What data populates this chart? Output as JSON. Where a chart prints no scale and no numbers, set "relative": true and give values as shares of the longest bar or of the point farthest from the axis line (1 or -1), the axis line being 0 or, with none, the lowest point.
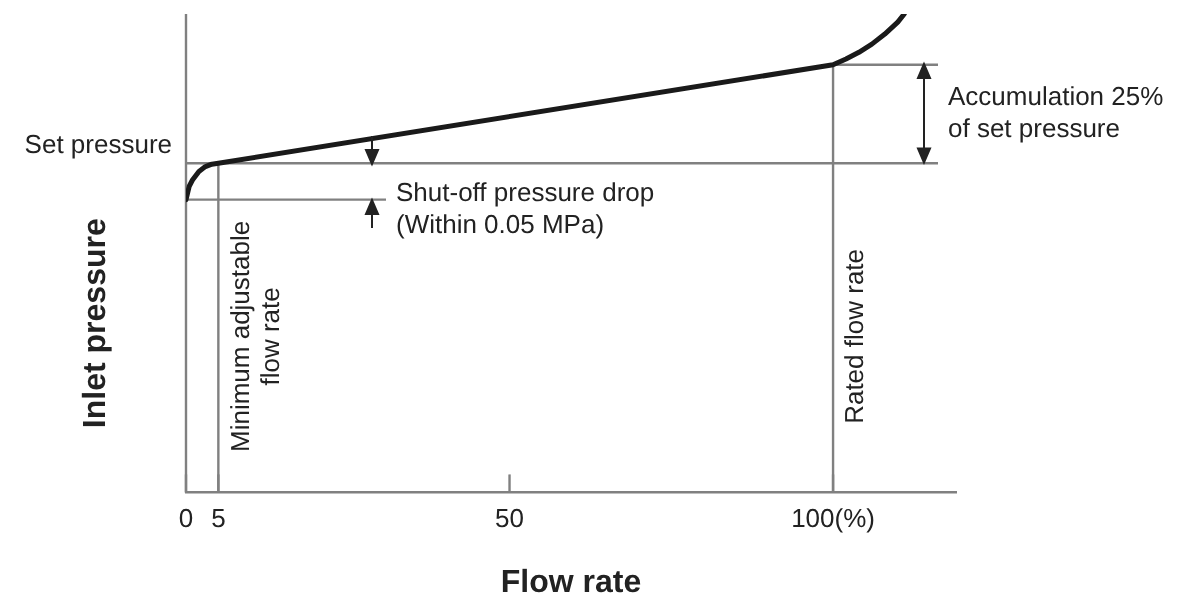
{
  "chart_data": {
    "type": "line",
    "relative": true,
    "xlabel": "Flow rate",
    "ylabel": "Inlet pressure",
    "x": [
      0,
      0.5,
      1,
      2,
      3,
      4,
      5,
      100,
      102,
      104,
      106,
      108,
      110,
      111
    ],
    "series": [
      {
        "color": "#1a1a1a",
        "values": [
          0.612,
          0.64,
          0.653,
          0.671,
          0.681,
          0.686,
          0.688,
          0.894,
          0.906,
          0.92,
          0.937,
          0.958,
          0.983,
          1
        ]
      }
    ],
    "xlim": [
      0,
      119
    ],
    "xticks": [
      0,
      5,
      50,
      {
        "value": 100,
        "label": "100(%)"
      }
    ],
    "ref_lines": [
      {
        "axis": "y",
        "value": 0.688,
        "label": "Set pressure",
        "color": "#808080"
      },
      {
        "axis": "y",
        "value": 0.612,
        "color": "#808080"
      },
      {
        "axis": "y",
        "value": 0.894,
        "color": "#808080"
      },
      {
        "axis": "x",
        "value": 5,
        "label": "Minimum adjustable flow rate",
        "color": "#808080"
      },
      {
        "axis": "x",
        "value": 100,
        "label": "Rated flow rate",
        "color": "#808080"
      }
    ],
    "annotations": [
      "Shut-off pressure drop (Within 0.05 MPa)",
      "Accumulation 25% of set pressure"
    ],
    "grid": false,
    "legend": false,
    "marker": "none",
    "line_style": "solid"
  }
}
